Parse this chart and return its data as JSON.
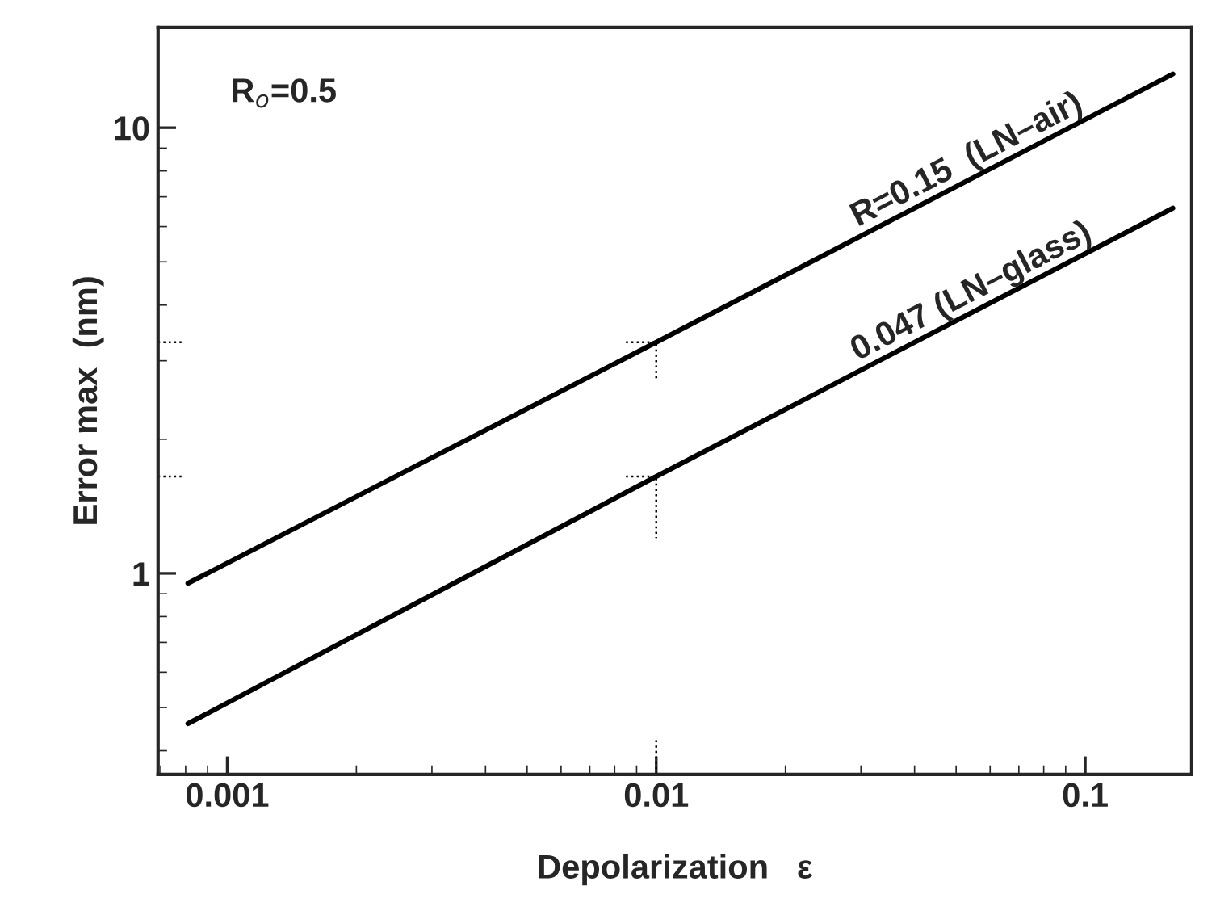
{
  "chart_data": {
    "type": "line",
    "xlabel": "Depolarization   ε",
    "ylabel": "Error max  (nm)",
    "log": "xy",
    "xlim": [
      0.00069,
      0.177
    ],
    "ylim": [
      0.354,
      16.8
    ],
    "xticks": [
      {
        "value": 0.001,
        "label": "0.001"
      },
      {
        "value": 0.01,
        "label": "0.01"
      },
      {
        "value": 0.1,
        "label": "0.1"
      }
    ],
    "yticks": [
      1,
      10
    ],
    "grid": false,
    "legend": false,
    "annotations": [
      "R$_{o}$=0.5",
      {
        "text": "R=0.15  (LN–air)",
        "x": 0.03,
        "y": 5.8
      },
      {
        "text": "0.047 (LN–glass)",
        "x": 0.03,
        "y": 2.9
      }
    ],
    "series": [
      {
        "color": "#000000",
        "x": [
          0.00081,
          0.01,
          0.16
        ],
        "values": [
          0.95,
          3.3,
          13.2
        ],
        "line_style": "solid"
      },
      {
        "color": "#000000",
        "x": [
          0.00081,
          0.01,
          0.16
        ],
        "values": [
          0.46,
          1.65,
          6.6
        ],
        "line_style": "solid"
      },
      {
        "color": "#000000",
        "x": [
          0.00069,
          0.00079
        ],
        "values": [
          3.3,
          3.3
        ],
        "line_style": "dotted"
      },
      {
        "color": "#000000",
        "x": [
          0.00069,
          0.00079
        ],
        "values": [
          1.65,
          1.65
        ],
        "line_style": "dotted"
      },
      {
        "color": "#000000",
        "x": [
          0.0085,
          0.01,
          0.01
        ],
        "values": [
          3.3,
          3.3,
          2.7
        ],
        "line_style": "dotted"
      },
      {
        "color": "#000000",
        "x": [
          0.0085,
          0.01,
          0.01
        ],
        "values": [
          1.65,
          1.65,
          1.2
        ],
        "line_style": "dotted"
      },
      {
        "color": "#000000",
        "x": [
          0.01,
          0.01
        ],
        "values": [
          0.354,
          0.43
        ],
        "line_style": "dotted"
      }
    ]
  }
}
